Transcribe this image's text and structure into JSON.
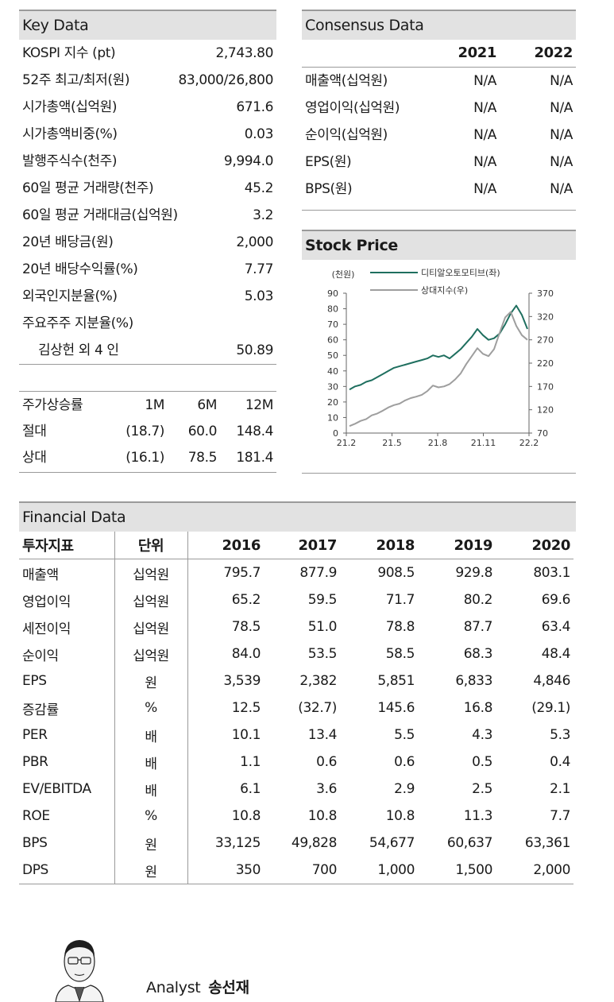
{
  "key_data": {
    "title": "Key Data",
    "rows": [
      {
        "label": "KOSPI 지수 (pt)",
        "value": "2,743.80"
      },
      {
        "label": "52주 최고/최저(원)",
        "value": "83,000/26,800"
      },
      {
        "label": "시가총액(십억원)",
        "value": "671.6"
      },
      {
        "label": "시가총액비중(%)",
        "value": "0.03"
      },
      {
        "label": "발행주식수(천주)",
        "value": "9,994.0"
      },
      {
        "label": "60일 평균 거래량(천주)",
        "value": "45.2"
      },
      {
        "label": "60일 평균 거래대금(십억원)",
        "value": "3.2"
      },
      {
        "label": "20년 배당금(원)",
        "value": "2,000"
      },
      {
        "label": "20년 배당수익률(%)",
        "value": "7.77"
      },
      {
        "label": "외국인지분율(%)",
        "value": "5.03"
      },
      {
        "label": "주요주주 지분율(%)",
        "value": ""
      },
      {
        "label": "김상헌 외 4 인",
        "value": "50.89"
      }
    ]
  },
  "price_return": {
    "headers": [
      "주가상승률",
      "1M",
      "6M",
      "12M"
    ],
    "rows": [
      {
        "label": "절대",
        "m1": "(18.7)",
        "m6": "60.0",
        "m12": "148.4"
      },
      {
        "label": "상대",
        "m1": "(16.1)",
        "m6": "78.5",
        "m12": "181.4"
      }
    ]
  },
  "consensus": {
    "title": "Consensus Data",
    "years": [
      "2021",
      "2022"
    ],
    "rows": [
      {
        "label": "매출액(십억원)",
        "y2021": "N/A",
        "y2022": "N/A"
      },
      {
        "label": "영업이익(십억원)",
        "y2021": "N/A",
        "y2022": "N/A"
      },
      {
        "label": "순이익(십억원)",
        "y2021": "N/A",
        "y2022": "N/A"
      },
      {
        "label": "EPS(원)",
        "y2021": "N/A",
        "y2022": "N/A"
      },
      {
        "label": "BPS(원)",
        "y2021": "N/A",
        "y2022": "N/A"
      }
    ]
  },
  "stock_price": {
    "title": "Stock Price",
    "colors": {
      "stock": "#1f6f5f",
      "index": "#9e9e9e"
    }
  },
  "chart_data": {
    "type": "line",
    "title": "Stock Price",
    "ylabel": "(천원)",
    "x_ticks": [
      "21.2",
      "21.5",
      "21.8",
      "21.11",
      "22.2"
    ],
    "ylim": [
      0,
      90
    ],
    "y_ticks": [
      0,
      10,
      20,
      30,
      40,
      50,
      60,
      70,
      80,
      90
    ],
    "y2lim": [
      70,
      370
    ],
    "y2_ticks": [
      70,
      120,
      170,
      220,
      270,
      320,
      370
    ],
    "legend": [
      "디티알오토모티브(좌)",
      "상대지수(우)"
    ],
    "legend_position": "top",
    "series": [
      {
        "name": "디티알오토모티브(좌)",
        "axis": "left",
        "values": [
          28,
          30,
          31,
          33,
          34,
          36,
          38,
          40,
          42,
          43,
          44,
          45,
          46,
          47,
          48,
          50,
          49,
          50,
          48,
          51,
          54,
          58,
          62,
          67,
          63,
          60,
          61,
          64,
          70,
          77,
          82,
          76,
          67
        ]
      },
      {
        "name": "상대지수(우)",
        "axis": "right",
        "values": [
          85,
          90,
          96,
          100,
          108,
          112,
          118,
          125,
          130,
          133,
          140,
          145,
          148,
          152,
          160,
          172,
          168,
          170,
          175,
          185,
          198,
          218,
          235,
          252,
          240,
          235,
          250,
          285,
          318,
          330,
          300,
          280,
          270
        ]
      }
    ]
  },
  "financial": {
    "title": "Financial Data",
    "headers": [
      "투자지표",
      "단위",
      "2016",
      "2017",
      "2018",
      "2019",
      "2020"
    ],
    "rows": [
      {
        "name": "매출액",
        "unit": "십억원",
        "v": [
          "795.7",
          "877.9",
          "908.5",
          "929.8",
          "803.1"
        ]
      },
      {
        "name": "영업이익",
        "unit": "십억원",
        "v": [
          "65.2",
          "59.5",
          "71.7",
          "80.2",
          "69.6"
        ]
      },
      {
        "name": "세전이익",
        "unit": "십억원",
        "v": [
          "78.5",
          "51.0",
          "78.8",
          "87.7",
          "63.4"
        ]
      },
      {
        "name": "순이익",
        "unit": "십억원",
        "v": [
          "84.0",
          "53.5",
          "58.5",
          "68.3",
          "48.4"
        ]
      },
      {
        "name": "EPS",
        "unit": "원",
        "v": [
          "3,539",
          "2,382",
          "5,851",
          "6,833",
          "4,846"
        ]
      },
      {
        "name": "증감률",
        "unit": "%",
        "v": [
          "12.5",
          "(32.7)",
          "145.6",
          "16.8",
          "(29.1)"
        ]
      },
      {
        "name": "PER",
        "unit": "배",
        "v": [
          "10.1",
          "13.4",
          "5.5",
          "4.3",
          "5.3"
        ]
      },
      {
        "name": "PBR",
        "unit": "배",
        "v": [
          "1.1",
          "0.6",
          "0.6",
          "0.5",
          "0.4"
        ]
      },
      {
        "name": "EV/EBITDA",
        "unit": "배",
        "v": [
          "6.1",
          "3.6",
          "2.9",
          "2.5",
          "2.1"
        ]
      },
      {
        "name": "ROE",
        "unit": "%",
        "v": [
          "10.8",
          "10.8",
          "10.8",
          "11.3",
          "7.7"
        ]
      },
      {
        "name": "BPS",
        "unit": "원",
        "v": [
          "33,125",
          "49,828",
          "54,677",
          "60,637",
          "63,361"
        ]
      },
      {
        "name": "DPS",
        "unit": "원",
        "v": [
          "350",
          "700",
          "1,000",
          "1,500",
          "2,000"
        ]
      }
    ]
  },
  "analyst": {
    "label": "Analyst",
    "name": "송선재"
  }
}
